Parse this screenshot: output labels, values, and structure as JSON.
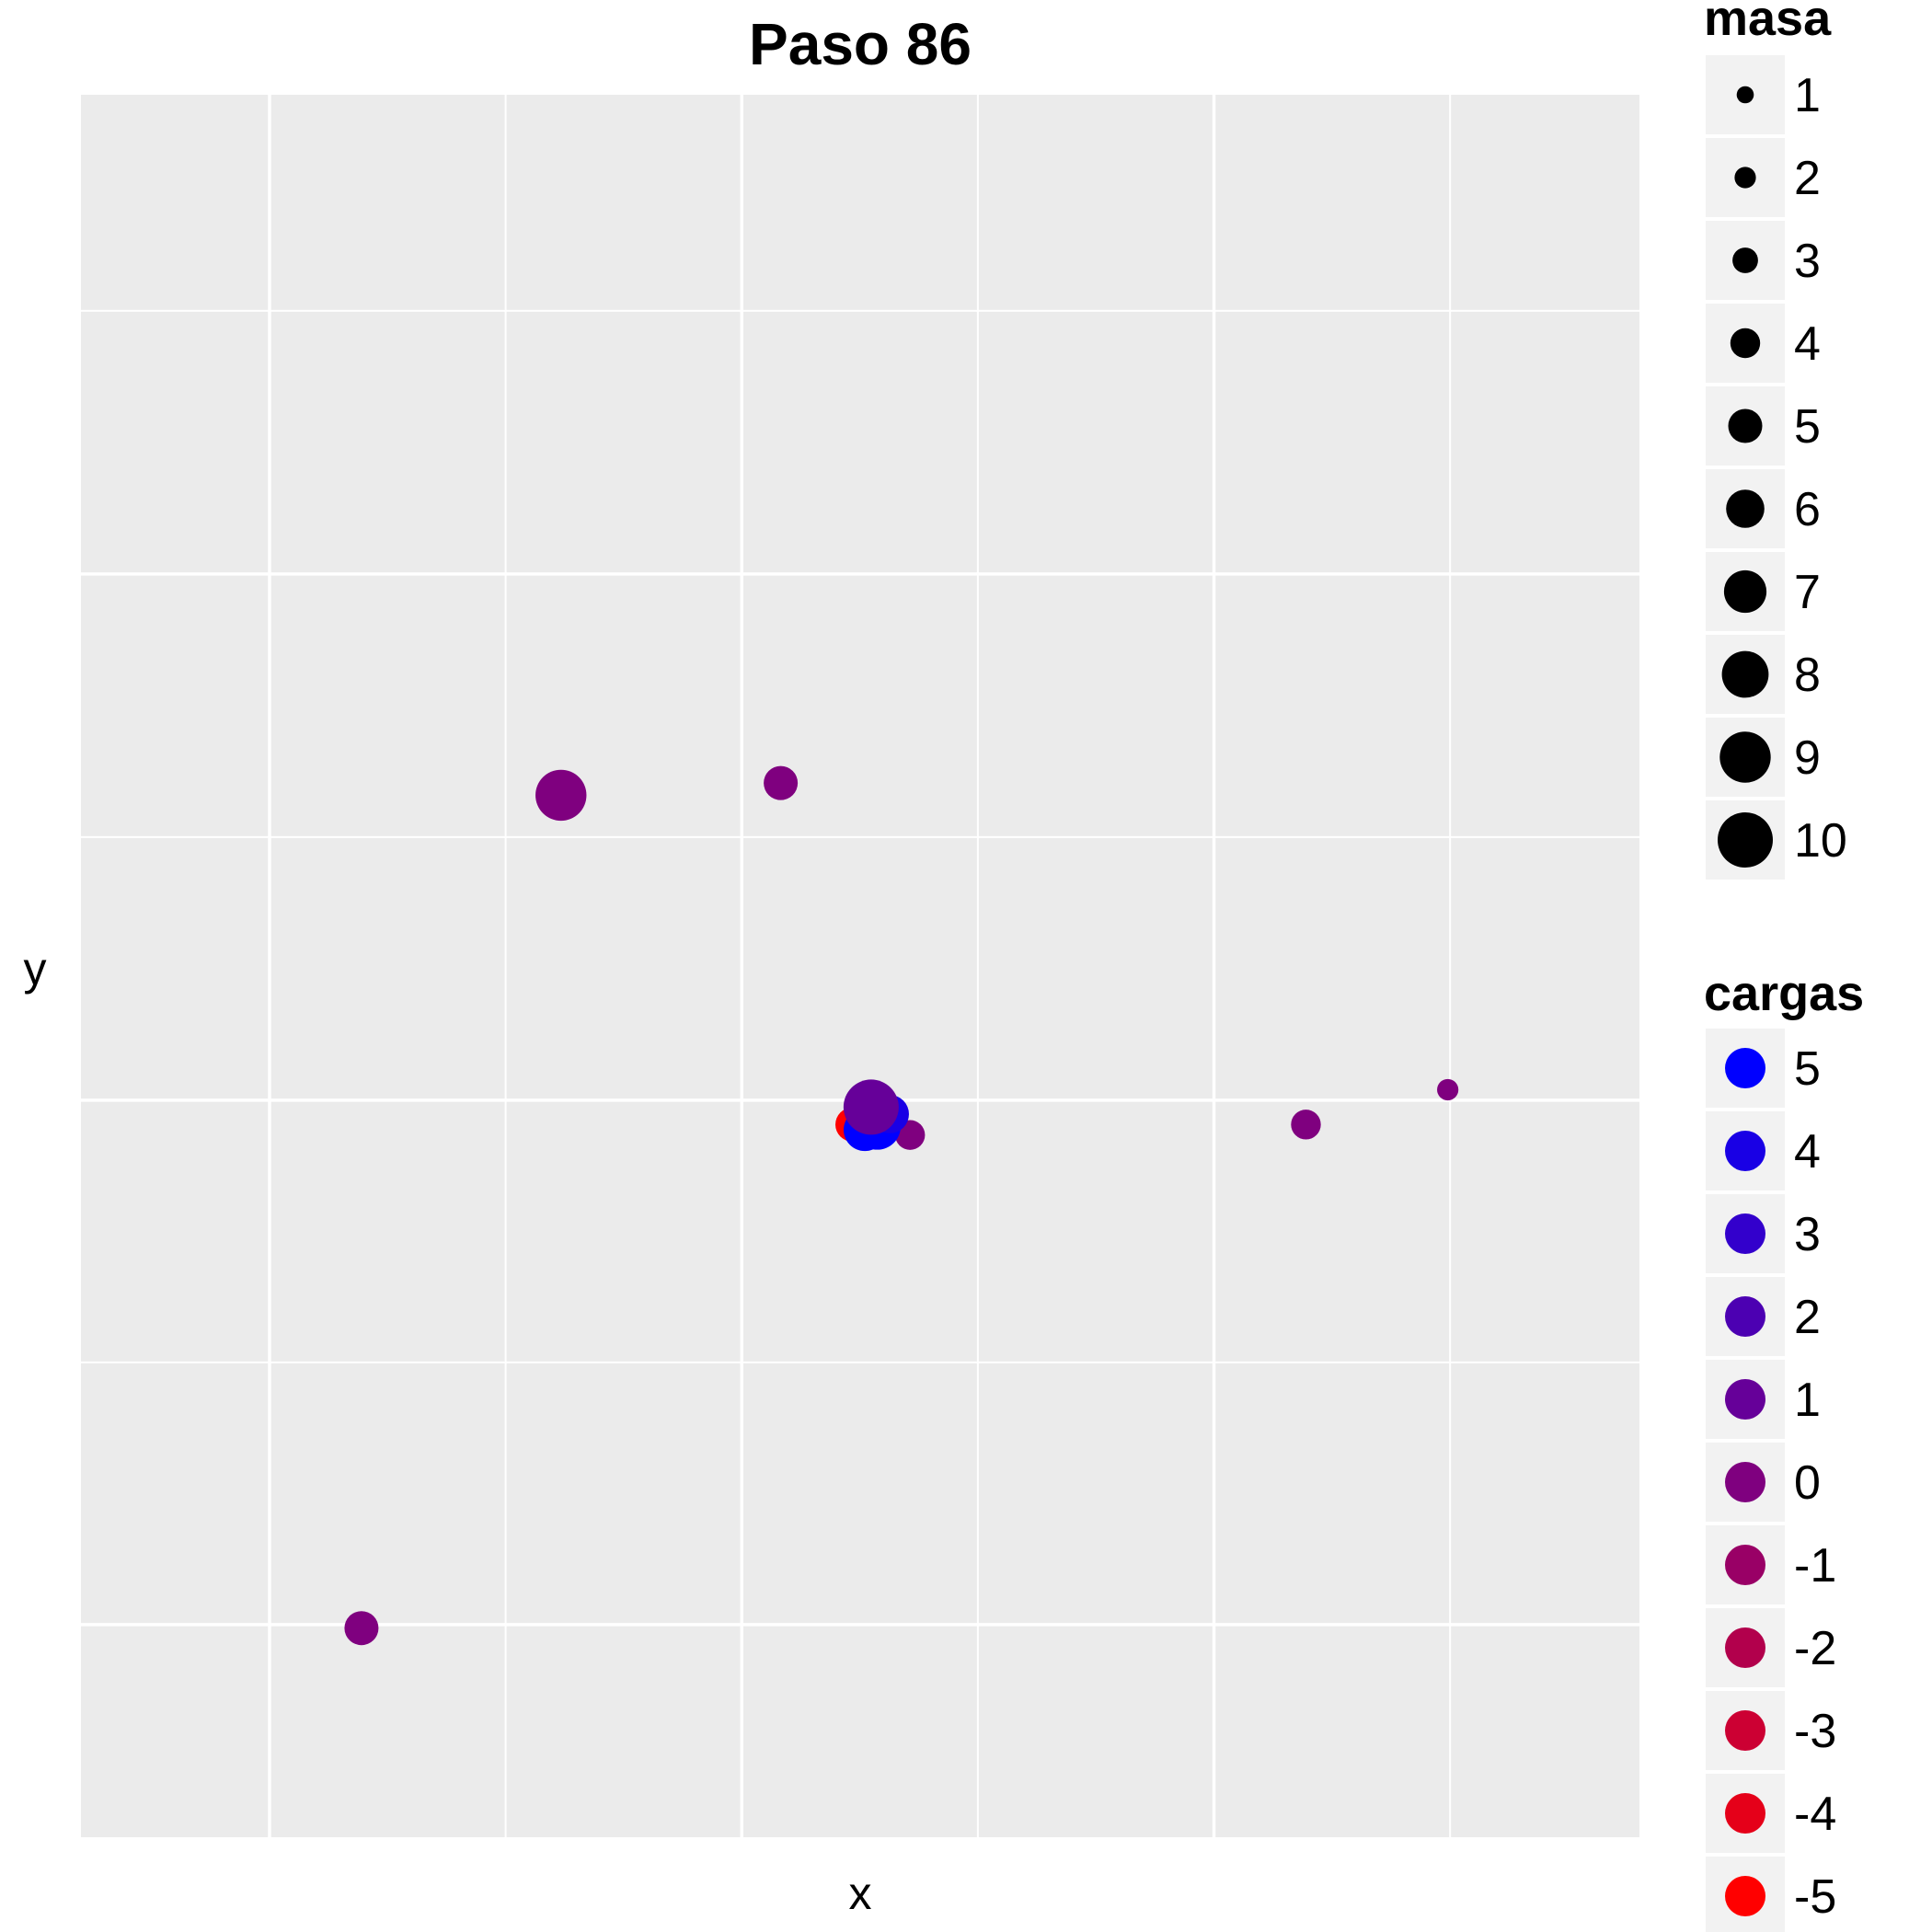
{
  "chart_data": {
    "type": "scatter",
    "title": "Paso 86",
    "xlabel": "x",
    "ylabel": "y",
    "xlim": [
      0,
      100
    ],
    "ylim": [
      0,
      100
    ],
    "grid": true,
    "axis_tick_labels_shown": false,
    "legend_placement": "right",
    "size_legend": {
      "title": "masa",
      "levels": [
        "1",
        "2",
        "3",
        "4",
        "5",
        "6",
        "7",
        "8",
        "9",
        "10"
      ],
      "color": "#000000"
    },
    "color_legend": {
      "title": "cargas",
      "levels": [
        {
          "label": "5",
          "color": "#0000ff"
        },
        {
          "label": "4",
          "color": "#1900e5"
        },
        {
          "label": "3",
          "color": "#3300cc"
        },
        {
          "label": "2",
          "color": "#4c00b2"
        },
        {
          "label": "1",
          "color": "#660099"
        },
        {
          "label": "0",
          "color": "#7f007f"
        },
        {
          "label": "-1",
          "color": "#990066"
        },
        {
          "label": "-2",
          "color": "#b2004c"
        },
        {
          "label": "-3",
          "color": "#cc0033"
        },
        {
          "label": "-4",
          "color": "#e50019"
        },
        {
          "label": "-5",
          "color": "#ff0000"
        }
      ]
    },
    "points": [
      {
        "x": 30.8,
        "y": 59.8,
        "masa": 9,
        "carga": 0
      },
      {
        "x": 44.9,
        "y": 60.5,
        "masa": 5,
        "carga": 0
      },
      {
        "x": 18.0,
        "y": 12.0,
        "masa": 5,
        "carga": 0
      },
      {
        "x": 53.2,
        "y": 40.3,
        "masa": 4,
        "carga": 0
      },
      {
        "x": 78.6,
        "y": 40.9,
        "masa": 4,
        "carga": 0
      },
      {
        "x": 87.7,
        "y": 42.9,
        "masa": 2,
        "carga": 0
      },
      {
        "x": 49.5,
        "y": 40.9,
        "masa": 5,
        "carga": -5
      },
      {
        "x": 50.3,
        "y": 40.6,
        "masa": 7,
        "carga": 5
      },
      {
        "x": 51.1,
        "y": 40.8,
        "masa": 8,
        "carga": 5
      },
      {
        "x": 51.9,
        "y": 41.5,
        "masa": 6,
        "carga": 4
      },
      {
        "x": 50.7,
        "y": 41.9,
        "masa": 10,
        "carga": 1
      }
    ]
  }
}
